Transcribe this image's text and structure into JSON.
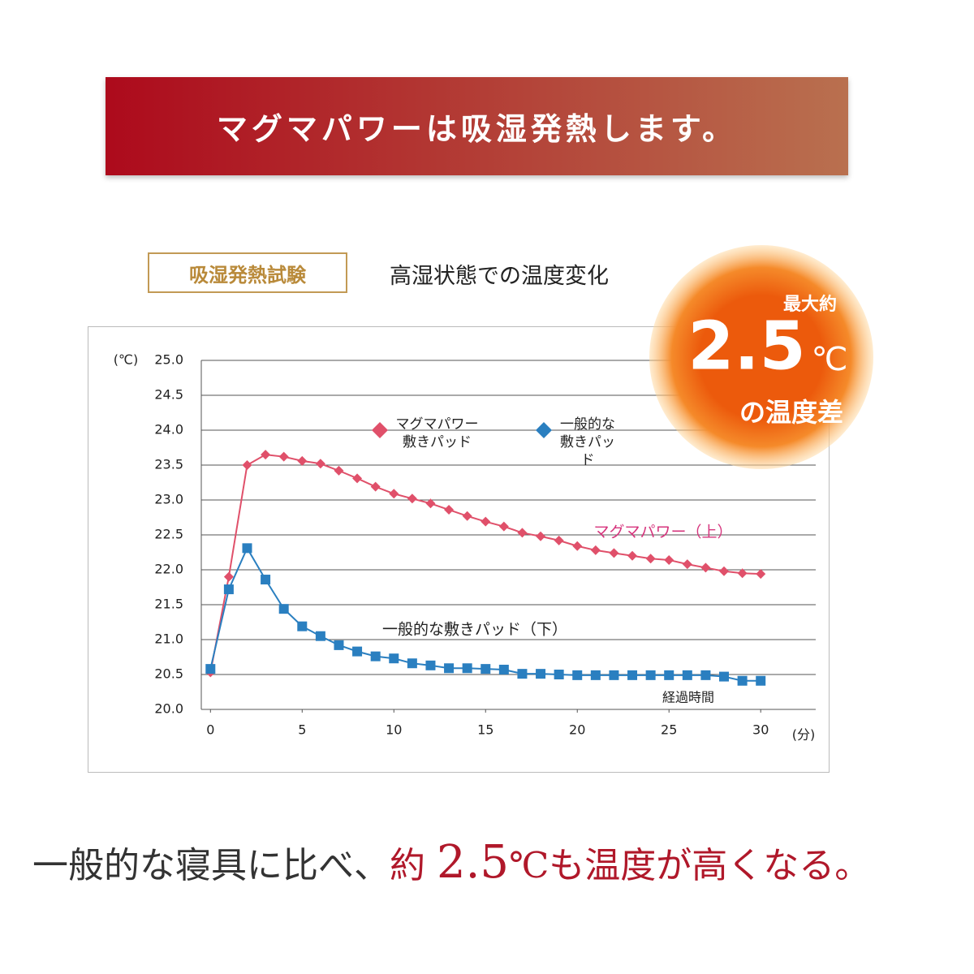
{
  "banner": {
    "title": "マグマパワーは吸湿発熱します。"
  },
  "badge": "吸湿発熱試験",
  "subtitle": "高湿状態での温度変化",
  "highlight": {
    "prefix": "最大約",
    "number": "2.5",
    "unit": "℃",
    "suffix": "の温度差"
  },
  "footer": {
    "lead": "一般的な寝具に比べ、",
    "word": "約",
    "number": "2.5",
    "tail": "℃も温度が高くなる。"
  },
  "chart_data": {
    "type": "line",
    "ylabel": "(℃)",
    "xlabel": "(分)",
    "x": [
      0,
      1,
      2,
      3,
      4,
      5,
      6,
      7,
      8,
      9,
      10,
      11,
      12,
      13,
      14,
      15,
      16,
      17,
      18,
      19,
      20,
      21,
      22,
      23,
      24,
      25,
      26,
      27,
      28,
      29,
      30
    ],
    "series": [
      {
        "name": "マグマパワー敷きパッド",
        "color": "#e0506a",
        "marker": "diamond",
        "values": [
          20.53,
          21.9,
          23.5,
          23.65,
          23.62,
          23.56,
          23.52,
          23.42,
          23.31,
          23.19,
          23.09,
          23.02,
          22.95,
          22.86,
          22.77,
          22.69,
          22.62,
          22.53,
          22.48,
          22.42,
          22.34,
          22.28,
          22.24,
          22.2,
          22.16,
          22.14,
          22.08,
          22.03,
          21.98,
          21.95,
          21.94
        ]
      },
      {
        "name": "一般的な敷きパッド",
        "color": "#2a7fc0",
        "marker": "square",
        "values": [
          20.58,
          21.72,
          22.31,
          21.86,
          21.44,
          21.19,
          21.05,
          20.92,
          20.83,
          20.76,
          20.73,
          20.66,
          20.63,
          20.59,
          20.59,
          20.58,
          20.57,
          20.51,
          20.51,
          20.5,
          20.49,
          20.49,
          20.49,
          20.49,
          20.49,
          20.49,
          20.49,
          20.49,
          20.47,
          20.41,
          20.41
        ]
      }
    ],
    "xlim": [
      -0.5,
      33
    ],
    "ylim": [
      20,
      25
    ],
    "xticks": [
      0,
      5,
      10,
      15,
      20,
      25,
      30
    ],
    "yticks": [
      {
        "value": 20,
        "label": "20.0"
      },
      {
        "value": 20.5,
        "label": "20.5"
      },
      {
        "value": 21,
        "label": "21.0"
      },
      {
        "value": 21.5,
        "label": "21.5"
      },
      {
        "value": 22,
        "label": "22.0"
      },
      {
        "value": 22.5,
        "label": "22.5"
      },
      {
        "value": 23,
        "label": "23.0"
      },
      {
        "value": 23.5,
        "label": "23.5"
      },
      {
        "value": 24,
        "label": "24.0"
      },
      {
        "value": 24.5,
        "label": "24.5"
      },
      {
        "value": 25,
        "label": "25.0"
      }
    ],
    "grid": true,
    "annotations": [
      "マグマパワー（上）",
      "一般的な敷きパッド（下）",
      "経過時間"
    ]
  }
}
